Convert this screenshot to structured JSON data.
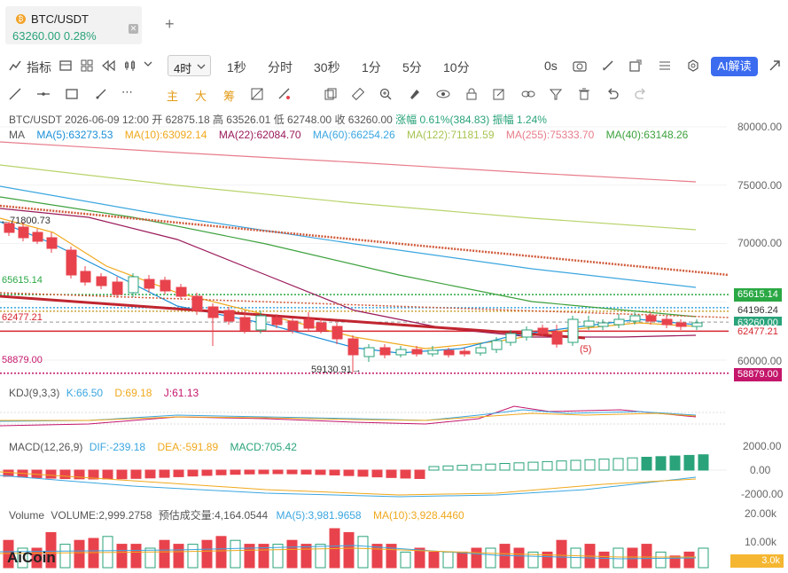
{
  "tab": {
    "title": "BTC/USDT",
    "price": "63260.00",
    "change": "0.28%",
    "close": "✕",
    "add": "+"
  },
  "toolbar": {
    "indicator_label": "指标",
    "interval_selected": "4时",
    "intervals": [
      "1秒",
      "分时",
      "30秒",
      "1分",
      "5分",
      "10分"
    ],
    "countdown": "0s",
    "ai_label": "AI解读"
  },
  "drawbar": {
    "main": "主",
    "big": "大",
    "chip": "筹"
  },
  "ohlc": {
    "pair": "BTC/USDT",
    "time": "2026-06-09 12:00",
    "open": "开 62875.18",
    "high": "高 63526.01",
    "low": "低 62748.00",
    "close": "收 63260.00",
    "change": "涨幅 0.61%(384.83)",
    "amplitude": "振幅 1.24%"
  },
  "ma_info": {
    "label": "MA",
    "items": [
      {
        "text": "MA(5):63273.53",
        "color": "#1a8fd9"
      },
      {
        "text": "MA(10):63092.14",
        "color": "#f0a81c"
      },
      {
        "text": "MA(22):62084.70",
        "color": "#9a1a5b"
      },
      {
        "text": "MA(60):66254.26",
        "color": "#3ba6e0"
      },
      {
        "text": "MA(122):71181.59",
        "color": "#b8d36a"
      },
      {
        "text": "MA(255):75333.70",
        "color": "#e77d8b"
      },
      {
        "text": "MA(40):63148.26",
        "color": "#3da13d"
      }
    ]
  },
  "price_axis": [
    "80000.00",
    "75000.00",
    "70000.00",
    "65000.00",
    "60000.00"
  ],
  "price_tags": [
    {
      "text": "65615.14",
      "bg": "#2aa844"
    },
    {
      "text": "64196.24",
      "bg": "#d6252f"
    },
    {
      "text": "63260.00",
      "bg": "#2aa37a"
    },
    {
      "text": "62477.21",
      "bg": "#d6252f"
    },
    {
      "text": "58879.00",
      "bg": "#c4166b"
    }
  ],
  "chart_labels": {
    "high_mark": "←71800.73",
    "low_mark": "59130.91→",
    "level_65615": "65615.14",
    "level_64": "64196.24",
    "level_62477": "62477.21",
    "level_58879": "58879.00",
    "wave": "(5)"
  },
  "kdj": {
    "label": "KDJ(9,3,3)",
    "k": "K:66.50",
    "d": "D:69.18",
    "j": "J:61.13"
  },
  "macd": {
    "label": "MACD(12,26,9)",
    "dif": "DIF:-239.18",
    "dea": "DEA:-591.89",
    "macd": "MACD:705.42",
    "axis": [
      "2000.00",
      "0.00",
      "-2000.00"
    ]
  },
  "volume": {
    "label": "Volume",
    "vol": "VOLUME:2,999.2758",
    "est": "预估成交量:4,164.0544",
    "ma5": "MA(5):3,981.9658",
    "ma10": "MA(10):3,928.4460",
    "axis": [
      "20.00k",
      "10.00k"
    ],
    "tag": "3.0k"
  },
  "logo": "AiCoin",
  "colors": {
    "up": "#2aa37a",
    "down": "#e8434d",
    "accent": "#3b6cf0"
  }
}
